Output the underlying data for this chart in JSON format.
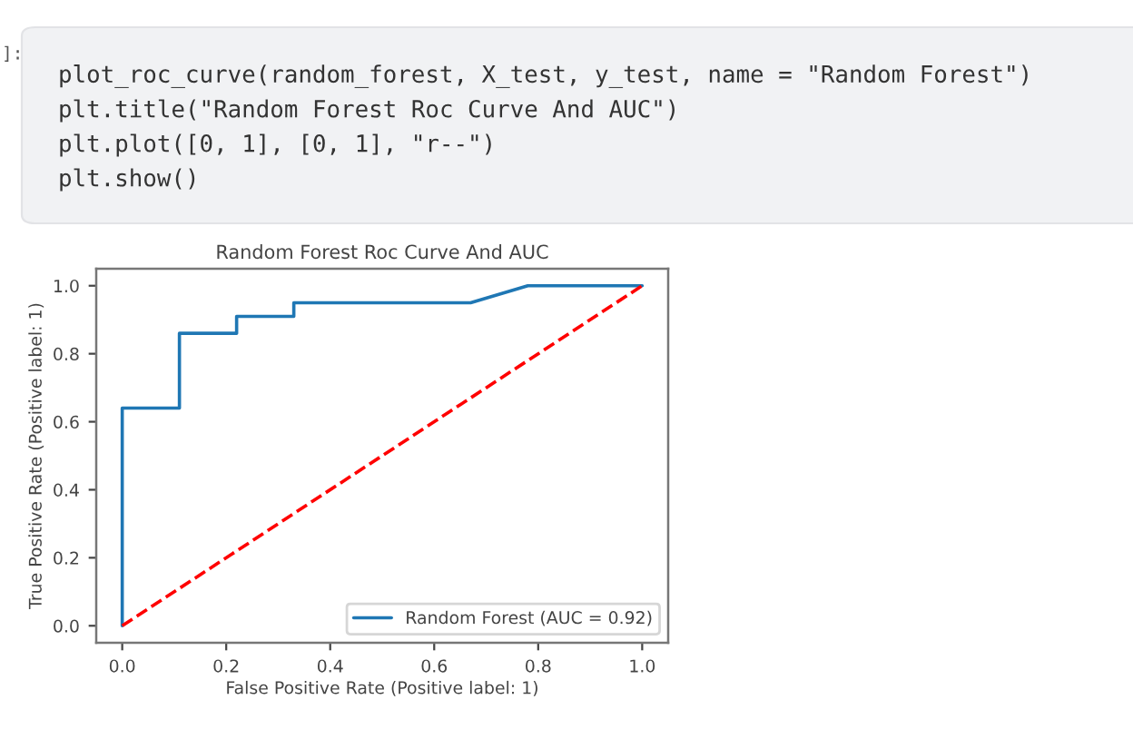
{
  "chart_data": {
    "type": "line",
    "title": "Random Forest Roc Curve And AUC",
    "xlabel": "False Positive Rate (Positive label: 1)",
    "ylabel": "True Positive Rate (Positive label: 1)",
    "xlim": [
      -0.05,
      1.05
    ],
    "ylim": [
      -0.05,
      1.05
    ],
    "xticks": [
      {
        "value": 0,
        "label": "0.0"
      },
      {
        "value": 0.2,
        "label": "0.2"
      },
      {
        "value": 0.4,
        "label": "0.4"
      },
      {
        "value": 0.6,
        "label": "0.6"
      },
      {
        "value": 0.8,
        "label": "0.8"
      },
      {
        "value": 1,
        "label": "1.0"
      }
    ],
    "yticks": [
      {
        "value": 0,
        "label": "0.0"
      },
      {
        "value": 0.2,
        "label": "0.2"
      },
      {
        "value": 0.4,
        "label": "0.4"
      },
      {
        "value": 0.6,
        "label": "0.6"
      },
      {
        "value": 0.8,
        "label": "0.8"
      },
      {
        "value": 1,
        "label": "1.0"
      }
    ],
    "legend": "bottom right",
    "series": [
      {
        "name": "Random Forest (AUC = 0.92)",
        "color": "#1f77b4",
        "line_style": "solid",
        "x": [
          0,
          0,
          0.11,
          0.11,
          0.22,
          0.22,
          0.33,
          0.33,
          0.67,
          0.78,
          1
        ],
        "values": [
          0,
          0.64,
          0.64,
          0.86,
          0.86,
          0.91,
          0.91,
          0.95,
          0.95,
          1,
          1
        ]
      },
      {
        "color": "#ff0000",
        "line_style": "dashed",
        "x": [
          0,
          1
        ],
        "values": [
          0,
          1
        ]
      }
    ],
    "annotations": [
      "]:",
      "plot_roc_curve(random_forest, X_test, y_test, name = \"Random Forest\")",
      "plt.title(\"Random Forest Roc Curve And AUC\")",
      "plt.plot([0, 1], [0, 1], \"r--\")",
      "plt.show()"
    ]
  }
}
